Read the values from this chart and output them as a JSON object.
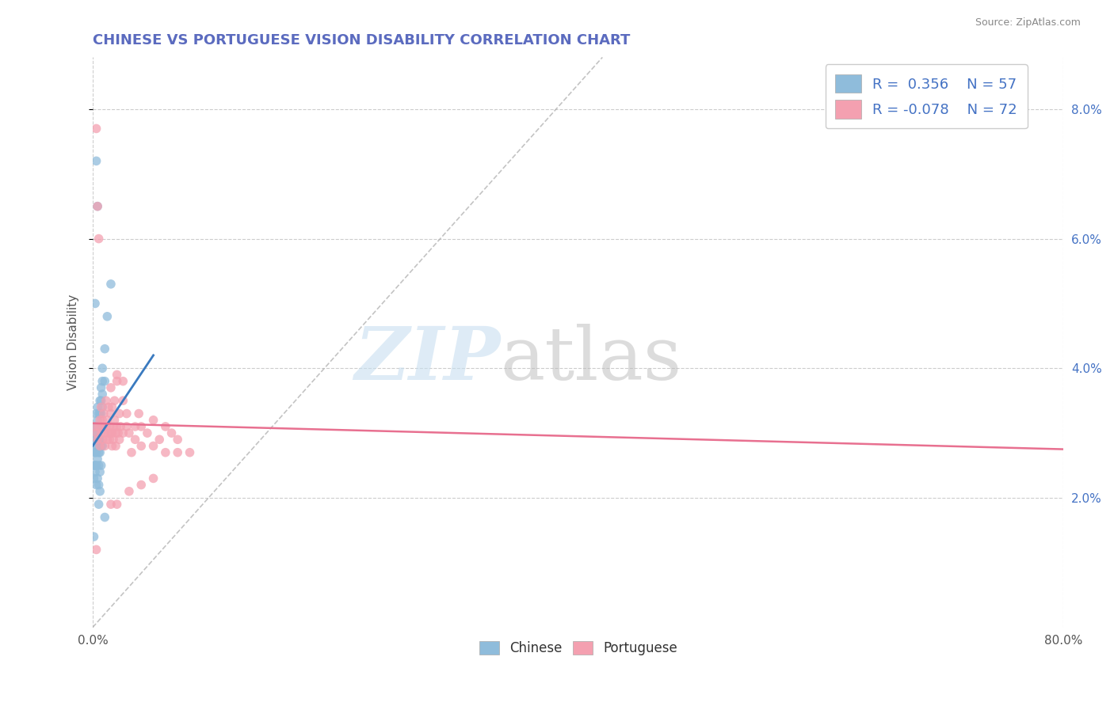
{
  "title": "CHINESE VS PORTUGUESE VISION DISABILITY CORRELATION CHART",
  "source": "Source: ZipAtlas.com",
  "ylabel": "Vision Disability",
  "xlim": [
    0.0,
    0.8
  ],
  "ylim": [
    0.0,
    0.088
  ],
  "yticks": [
    0.02,
    0.04,
    0.06,
    0.08
  ],
  "ytick_labels": [
    "2.0%",
    "4.0%",
    "6.0%",
    "8.0%"
  ],
  "xticks": [
    0.0,
    0.8
  ],
  "xtick_labels": [
    "0.0%",
    "80.0%"
  ],
  "chinese_R": 0.356,
  "chinese_N": 57,
  "portuguese_R": -0.078,
  "portuguese_N": 72,
  "chinese_color": "#8fbcdb",
  "portuguese_color": "#f4a0b0",
  "chinese_line_color": "#3a7abf",
  "portuguese_line_color": "#e87090",
  "background_color": "#ffffff",
  "grid_color": "#cccccc",
  "title_color": "#5b6bbf",
  "legend_R_color": "#4472c4",
  "chinese_scatter": [
    [
      0.001,
      0.03
    ],
    [
      0.001,
      0.028
    ],
    [
      0.001,
      0.027
    ],
    [
      0.001,
      0.025
    ],
    [
      0.001,
      0.023
    ],
    [
      0.002,
      0.031
    ],
    [
      0.002,
      0.029
    ],
    [
      0.002,
      0.027
    ],
    [
      0.002,
      0.025
    ],
    [
      0.002,
      0.024
    ],
    [
      0.003,
      0.033
    ],
    [
      0.003,
      0.031
    ],
    [
      0.003,
      0.029
    ],
    [
      0.003,
      0.027
    ],
    [
      0.003,
      0.025
    ],
    [
      0.003,
      0.022
    ],
    [
      0.004,
      0.034
    ],
    [
      0.004,
      0.032
    ],
    [
      0.004,
      0.03
    ],
    [
      0.004,
      0.028
    ],
    [
      0.004,
      0.026
    ],
    [
      0.004,
      0.023
    ],
    [
      0.005,
      0.033
    ],
    [
      0.005,
      0.031
    ],
    [
      0.005,
      0.029
    ],
    [
      0.005,
      0.027
    ],
    [
      0.005,
      0.025
    ],
    [
      0.005,
      0.022
    ],
    [
      0.005,
      0.019
    ],
    [
      0.006,
      0.035
    ],
    [
      0.006,
      0.033
    ],
    [
      0.006,
      0.031
    ],
    [
      0.006,
      0.029
    ],
    [
      0.006,
      0.027
    ],
    [
      0.006,
      0.024
    ],
    [
      0.006,
      0.021
    ],
    [
      0.007,
      0.037
    ],
    [
      0.007,
      0.035
    ],
    [
      0.007,
      0.033
    ],
    [
      0.007,
      0.031
    ],
    [
      0.007,
      0.028
    ],
    [
      0.007,
      0.025
    ],
    [
      0.008,
      0.04
    ],
    [
      0.008,
      0.038
    ],
    [
      0.008,
      0.036
    ],
    [
      0.008,
      0.034
    ],
    [
      0.008,
      0.031
    ],
    [
      0.008,
      0.028
    ],
    [
      0.01,
      0.043
    ],
    [
      0.01,
      0.038
    ],
    [
      0.012,
      0.048
    ],
    [
      0.015,
      0.053
    ],
    [
      0.002,
      0.05
    ],
    [
      0.003,
      0.072
    ],
    [
      0.004,
      0.065
    ],
    [
      0.001,
      0.014
    ],
    [
      0.01,
      0.017
    ]
  ],
  "portuguese_scatter": [
    [
      0.002,
      0.031
    ],
    [
      0.003,
      0.03
    ],
    [
      0.003,
      0.077
    ],
    [
      0.004,
      0.065
    ],
    [
      0.004,
      0.029
    ],
    [
      0.005,
      0.06
    ],
    [
      0.005,
      0.031
    ],
    [
      0.006,
      0.028
    ],
    [
      0.006,
      0.032
    ],
    [
      0.007,
      0.03
    ],
    [
      0.007,
      0.034
    ],
    [
      0.008,
      0.029
    ],
    [
      0.008,
      0.032
    ],
    [
      0.009,
      0.031
    ],
    [
      0.009,
      0.033
    ],
    [
      0.01,
      0.03
    ],
    [
      0.01,
      0.028
    ],
    [
      0.011,
      0.031
    ],
    [
      0.011,
      0.035
    ],
    [
      0.012,
      0.029
    ],
    [
      0.012,
      0.032
    ],
    [
      0.013,
      0.03
    ],
    [
      0.013,
      0.034
    ],
    [
      0.014,
      0.031
    ],
    [
      0.014,
      0.029
    ],
    [
      0.015,
      0.033
    ],
    [
      0.015,
      0.03
    ],
    [
      0.015,
      0.037
    ],
    [
      0.016,
      0.03
    ],
    [
      0.016,
      0.028
    ],
    [
      0.016,
      0.034
    ],
    [
      0.017,
      0.031
    ],
    [
      0.017,
      0.029
    ],
    [
      0.018,
      0.032
    ],
    [
      0.018,
      0.035
    ],
    [
      0.019,
      0.03
    ],
    [
      0.019,
      0.028
    ],
    [
      0.02,
      0.031
    ],
    [
      0.02,
      0.038
    ],
    [
      0.02,
      0.039
    ],
    [
      0.021,
      0.03
    ],
    [
      0.022,
      0.033
    ],
    [
      0.022,
      0.029
    ],
    [
      0.023,
      0.031
    ],
    [
      0.025,
      0.03
    ],
    [
      0.025,
      0.038
    ],
    [
      0.025,
      0.035
    ],
    [
      0.028,
      0.031
    ],
    [
      0.028,
      0.033
    ],
    [
      0.03,
      0.03
    ],
    [
      0.032,
      0.027
    ],
    [
      0.035,
      0.029
    ],
    [
      0.035,
      0.031
    ],
    [
      0.038,
      0.033
    ],
    [
      0.04,
      0.031
    ],
    [
      0.04,
      0.028
    ],
    [
      0.045,
      0.03
    ],
    [
      0.05,
      0.028
    ],
    [
      0.05,
      0.032
    ],
    [
      0.055,
      0.029
    ],
    [
      0.06,
      0.027
    ],
    [
      0.06,
      0.031
    ],
    [
      0.065,
      0.03
    ],
    [
      0.07,
      0.029
    ],
    [
      0.015,
      0.019
    ],
    [
      0.02,
      0.019
    ],
    [
      0.03,
      0.021
    ],
    [
      0.04,
      0.022
    ],
    [
      0.05,
      0.023
    ],
    [
      0.07,
      0.027
    ],
    [
      0.08,
      0.027
    ],
    [
      0.003,
      0.012
    ]
  ]
}
